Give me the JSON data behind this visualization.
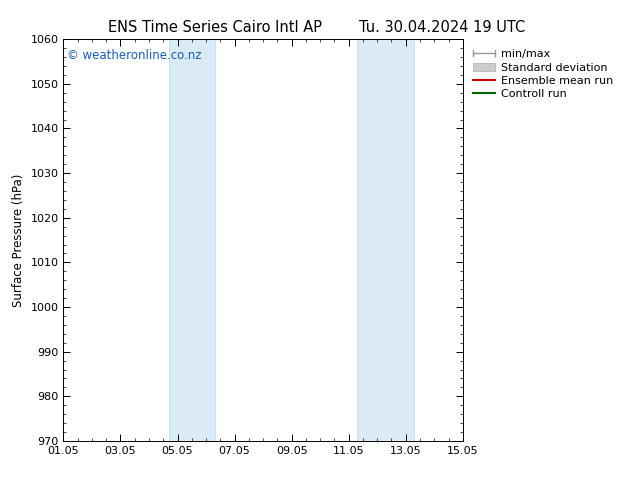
{
  "title_left": "ENS Time Series Cairo Intl AP",
  "title_right": "Tu. 30.04.2024 19 UTC",
  "ylabel": "Surface Pressure (hPa)",
  "ylim": [
    970,
    1060
  ],
  "yticks": [
    970,
    980,
    990,
    1000,
    1010,
    1020,
    1030,
    1040,
    1050,
    1060
  ],
  "xtick_labels": [
    "01.05",
    "03.05",
    "05.05",
    "07.05",
    "09.05",
    "11.05",
    "13.05",
    "15.05"
  ],
  "xtick_positions": [
    0,
    2,
    4,
    6,
    8,
    10,
    12,
    14
  ],
  "xlim": [
    0,
    14
  ],
  "shaded_regions": [
    {
      "x_start": 3.7,
      "x_end": 5.3
    },
    {
      "x_start": 10.3,
      "x_end": 12.3
    }
  ],
  "shaded_color": "#daeaf7",
  "shaded_edge_color": "#c0d8ee",
  "background_color": "#ffffff",
  "watermark_text": "© weatheronline.co.nz",
  "watermark_color": "#1a5fbb",
  "watermark_fontsize": 8.5,
  "legend_labels": [
    "min/max",
    "Standard deviation",
    "Ensemble mean run",
    "Controll run"
  ],
  "legend_colors": [
    "#aaaaaa",
    "#cccccc",
    "#cc0000",
    "#006600"
  ],
  "title_fontsize": 10.5,
  "axis_label_fontsize": 8.5,
  "tick_fontsize": 8,
  "legend_fontsize": 8
}
